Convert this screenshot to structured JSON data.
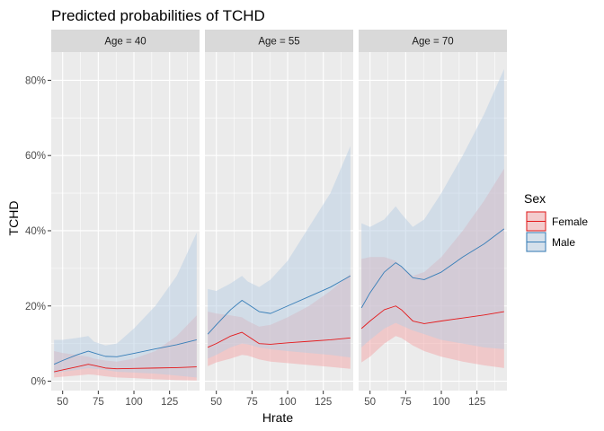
{
  "chart_data": {
    "type": "line",
    "title": "Predicted probabilities of TCHD",
    "xlabel": "Hrate",
    "ylabel": "TCHD",
    "xlim": [
      42,
      146
    ],
    "ylim": [
      -0.025,
      0.875
    ],
    "x_ticks": [
      50,
      75,
      100,
      125
    ],
    "x_tick_labels": [
      "50",
      "75",
      "100",
      "125"
    ],
    "y_ticks": [
      0,
      0.2,
      0.4,
      0.6,
      0.8
    ],
    "y_tick_labels": [
      "0%",
      "20%",
      "40%",
      "60%",
      "80%"
    ],
    "grid": true,
    "legend": {
      "title": "Sex",
      "position": "right",
      "items": [
        {
          "label": "Female",
          "line_color": "#e41a1c",
          "fill_color": "#f4a6a8"
        },
        {
          "label": "Male",
          "line_color": "#377eb8",
          "fill_color": "#b7cde3"
        }
      ]
    },
    "x": [
      44,
      50,
      60,
      68,
      72,
      80,
      88,
      100,
      115,
      130,
      144
    ],
    "panels": [
      {
        "strip": "Age = 40",
        "series": [
          {
            "name": "Female",
            "values": [
              0.025,
              0.03,
              0.038,
              0.045,
              0.042,
              0.035,
              0.033,
              0.034,
              0.035,
              0.036,
              0.038
            ],
            "lower": [
              0.01,
              0.012,
              0.015,
              0.018,
              0.017,
              0.013,
              0.01,
              0.008,
              0.005,
              0.003,
              0.002
            ],
            "upper": [
              0.08,
              0.075,
              0.07,
              0.065,
              0.06,
              0.055,
              0.052,
              0.06,
              0.08,
              0.12,
              0.175
            ]
          },
          {
            "name": "Male",
            "values": [
              0.045,
              0.055,
              0.07,
              0.08,
              0.075,
              0.066,
              0.065,
              0.074,
              0.086,
              0.097,
              0.11
            ],
            "lower": [
              0.02,
              0.025,
              0.03,
              0.035,
              0.033,
              0.03,
              0.025,
              0.023,
              0.02,
              0.015,
              0.01
            ],
            "upper": [
              0.11,
              0.11,
              0.115,
              0.12,
              0.105,
              0.095,
              0.1,
              0.14,
              0.2,
              0.28,
              0.395
            ]
          }
        ]
      },
      {
        "strip": "Age = 55",
        "series": [
          {
            "name": "Female",
            "values": [
              0.09,
              0.1,
              0.12,
              0.13,
              0.12,
              0.1,
              0.098,
              0.102,
              0.106,
              0.11,
              0.115
            ],
            "lower": [
              0.04,
              0.05,
              0.06,
              0.07,
              0.068,
              0.058,
              0.052,
              0.048,
              0.043,
              0.038,
              0.033
            ],
            "upper": [
              0.185,
              0.18,
              0.175,
              0.17,
              0.16,
              0.145,
              0.15,
              0.17,
              0.2,
              0.24,
              0.285
            ]
          },
          {
            "name": "Male",
            "values": [
              0.125,
              0.15,
              0.19,
              0.215,
              0.205,
              0.185,
              0.18,
              0.2,
              0.225,
              0.25,
              0.28
            ],
            "lower": [
              0.06,
              0.07,
              0.09,
              0.1,
              0.098,
              0.09,
              0.085,
              0.08,
              0.075,
              0.07,
              0.063
            ],
            "upper": [
              0.245,
              0.24,
              0.26,
              0.28,
              0.265,
              0.25,
              0.27,
              0.32,
              0.41,
              0.5,
              0.625
            ]
          }
        ]
      },
      {
        "strip": "Age = 70",
        "series": [
          {
            "name": "Female",
            "values": [
              0.14,
              0.16,
              0.19,
              0.2,
              0.19,
              0.16,
              0.153,
              0.16,
              0.168,
              0.176,
              0.185
            ],
            "lower": [
              0.05,
              0.065,
              0.1,
              0.12,
              0.115,
              0.095,
              0.08,
              0.065,
              0.052,
              0.042,
              0.035
            ],
            "upper": [
              0.325,
              0.33,
              0.33,
              0.32,
              0.305,
              0.28,
              0.29,
              0.33,
              0.4,
              0.48,
              0.565
            ]
          },
          {
            "name": "Male",
            "values": [
              0.195,
              0.235,
              0.29,
              0.315,
              0.305,
              0.275,
              0.27,
              0.29,
              0.33,
              0.365,
              0.405
            ],
            "lower": [
              0.09,
              0.11,
              0.14,
              0.155,
              0.148,
              0.135,
              0.125,
              0.11,
              0.1,
              0.09,
              0.085
            ],
            "upper": [
              0.42,
              0.41,
              0.43,
              0.465,
              0.445,
              0.41,
              0.43,
              0.5,
              0.6,
              0.71,
              0.83
            ]
          }
        ]
      }
    ]
  }
}
